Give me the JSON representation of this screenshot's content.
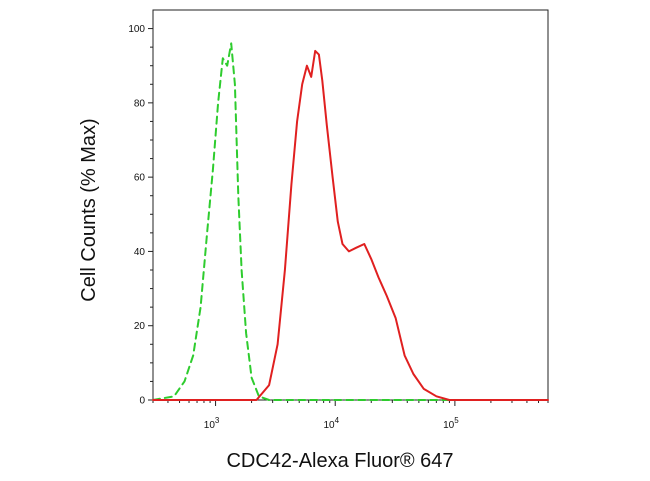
{
  "chart_data": {
    "type": "line",
    "xlabel": "CDC42-Alexa Fluor® 647",
    "ylabel": "Cell Counts (% Max)",
    "x_scale": "log",
    "xlim": [
      300,
      600000
    ],
    "ylim": [
      0,
      105
    ],
    "y_ticks": [
      "0",
      "20",
      "40",
      "60",
      "80",
      "100"
    ],
    "x_ticks": [
      {
        "base": "10",
        "exp": "3"
      },
      {
        "base": "10",
        "exp": "4"
      },
      {
        "base": "10",
        "exp": "5"
      }
    ],
    "series": [
      {
        "color": "#2ecc2e",
        "style": "dashed",
        "x": [
          300,
          450,
          550,
          650,
          750,
          850,
          950,
          1050,
          1150,
          1250,
          1350,
          1450,
          1550,
          1650,
          1800,
          2000,
          2300,
          2800,
          5000,
          100000,
          600000
        ],
        "y": [
          0,
          1,
          5,
          12,
          25,
          45,
          62,
          80,
          92,
          90,
          96,
          85,
          55,
          35,
          18,
          6,
          1,
          0,
          0,
          0,
          0
        ]
      },
      {
        "color": "#e02020",
        "style": "solid",
        "x": [
          300,
          2200,
          2800,
          3300,
          3800,
          4300,
          4800,
          5300,
          5800,
          6300,
          6800,
          7300,
          7800,
          8500,
          9500,
          10500,
          11500,
          13000,
          15000,
          17500,
          20000,
          23000,
          27000,
          32000,
          38000,
          45000,
          55000,
          70000,
          90000,
          600000
        ],
        "y": [
          0,
          0,
          4,
          15,
          35,
          58,
          75,
          85,
          90,
          87,
          94,
          93,
          86,
          74,
          60,
          48,
          42,
          40,
          41,
          42,
          38,
          33,
          28,
          22,
          12,
          7,
          3,
          1,
          0,
          0
        ]
      }
    ]
  }
}
